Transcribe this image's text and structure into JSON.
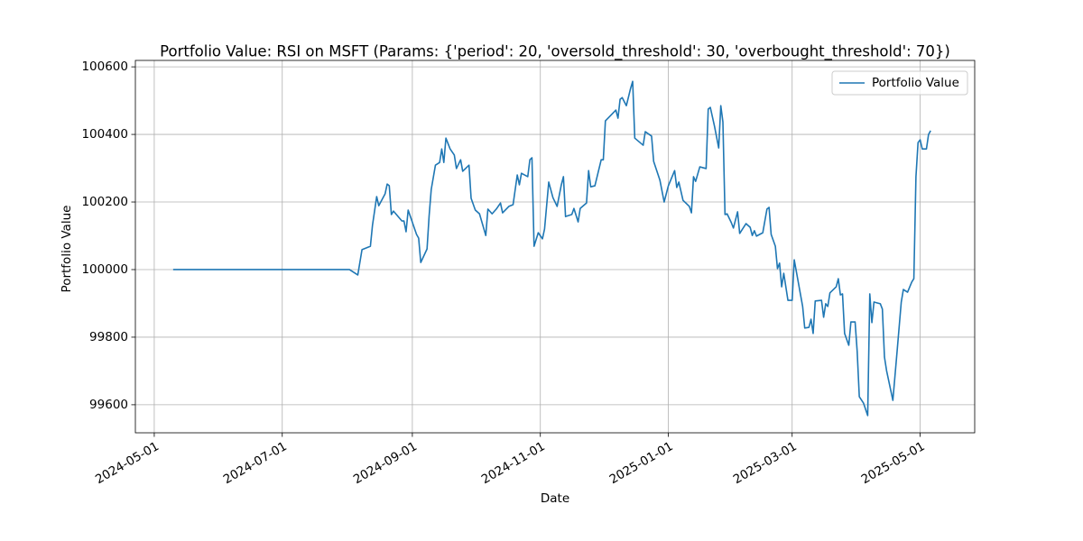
{
  "chart_data": {
    "type": "line",
    "title": "Portfolio Value: RSI on MSFT (Params: {'period': 20, 'oversold_threshold': 30, 'overbought_threshold': 70})",
    "x_label": "Date",
    "y_label": "Portfolio Value",
    "x": [
      "2024-05-10",
      "2024-08-02",
      "2024-08-06",
      "2024-08-08",
      "2024-08-12",
      "2024-08-13",
      "2024-08-15",
      "2024-08-16",
      "2024-08-19",
      "2024-08-20",
      "2024-08-21",
      "2024-08-22",
      "2024-08-23",
      "2024-08-27",
      "2024-08-28",
      "2024-08-29",
      "2024-08-30",
      "2024-09-03",
      "2024-09-04",
      "2024-09-05",
      "2024-09-08",
      "2024-09-09",
      "2024-09-10",
      "2024-09-12",
      "2024-09-14",
      "2024-09-15",
      "2024-09-16",
      "2024-09-17",
      "2024-09-19",
      "2024-09-21",
      "2024-09-22",
      "2024-09-24",
      "2024-09-25",
      "2024-09-28",
      "2024-09-29",
      "2024-10-01",
      "2024-10-03",
      "2024-10-06",
      "2024-10-07",
      "2024-10-09",
      "2024-10-11",
      "2024-10-13",
      "2024-10-14",
      "2024-10-17",
      "2024-10-19",
      "2024-10-21",
      "2024-10-22",
      "2024-10-23",
      "2024-10-26",
      "2024-10-27",
      "2024-10-28",
      "2024-10-29",
      "2024-10-31",
      "2024-11-02",
      "2024-11-03",
      "2024-11-05",
      "2024-11-07",
      "2024-11-09",
      "2024-11-11",
      "2024-11-12",
      "2024-11-13",
      "2024-11-16",
      "2024-11-17",
      "2024-11-19",
      "2024-11-20",
      "2024-11-23",
      "2024-11-24",
      "2024-11-25",
      "2024-11-27",
      "2024-11-30",
      "2024-12-01",
      "2024-12-02",
      "2024-12-07",
      "2024-12-08",
      "2024-12-09",
      "2024-12-10",
      "2024-12-12",
      "2024-12-14",
      "2024-12-15",
      "2024-12-16",
      "2024-12-20",
      "2024-12-21",
      "2024-12-24",
      "2024-12-25",
      "2024-12-28",
      "2024-12-29",
      "2024-12-30",
      "2025-01-01",
      "2025-01-04",
      "2025-01-05",
      "2025-01-06",
      "2025-01-08",
      "2025-01-11",
      "2025-01-12",
      "2025-01-13",
      "2025-01-14",
      "2025-01-16",
      "2025-01-19",
      "2025-01-20",
      "2025-01-21",
      "2025-01-23",
      "2025-01-25",
      "2025-01-26",
      "2025-01-27",
      "2025-01-28",
      "2025-01-29",
      "2025-01-31",
      "2025-02-01",
      "2025-02-03",
      "2025-02-04",
      "2025-02-07",
      "2025-02-09",
      "2025-02-10",
      "2025-02-11",
      "2025-02-12",
      "2025-02-15",
      "2025-02-17",
      "2025-02-18",
      "2025-02-19",
      "2025-02-21",
      "2025-02-22",
      "2025-02-23",
      "2025-02-24",
      "2025-02-25",
      "2025-02-27",
      "2025-03-01",
      "2025-03-02",
      "2025-03-04",
      "2025-03-06",
      "2025-03-07",
      "2025-03-09",
      "2025-03-10",
      "2025-03-11",
      "2025-03-12",
      "2025-03-15",
      "2025-03-16",
      "2025-03-17",
      "2025-03-18",
      "2025-03-19",
      "2025-03-22",
      "2025-03-23",
      "2025-03-24",
      "2025-03-25",
      "2025-03-26",
      "2025-03-28",
      "2025-03-29",
      "2025-03-31",
      "2025-04-01",
      "2025-04-02",
      "2025-04-04",
      "2025-04-06",
      "2025-04-07",
      "2025-04-08",
      "2025-04-09",
      "2025-04-12",
      "2025-04-13",
      "2025-04-14",
      "2025-04-15",
      "2025-04-18",
      "2025-04-20",
      "2025-04-22",
      "2025-04-23",
      "2025-04-25",
      "2025-04-27",
      "2025-04-28",
      "2025-04-29",
      "2025-04-30",
      "2025-05-01",
      "2025-05-02",
      "2025-05-04",
      "2025-05-05",
      "2025-05-06"
    ],
    "series": [
      {
        "name": "Portfolio Value",
        "color": "#1f77b4",
        "values": [
          100000,
          100000,
          99984,
          100059,
          100069,
          100131,
          100216,
          100189,
          100224,
          100253,
          100248,
          100163,
          100173,
          100144,
          100144,
          100112,
          100176,
          100104,
          100093,
          100021,
          100061,
          100160,
          100237,
          100309,
          100317,
          100357,
          100317,
          100389,
          100357,
          100339,
          100299,
          100325,
          100291,
          100309,
          100211,
          100176,
          100165,
          100101,
          100179,
          100165,
          100179,
          100197,
          100168,
          100187,
          100192,
          100280,
          100251,
          100285,
          100275,
          100325,
          100331,
          100069,
          100109,
          100091,
          100120,
          100259,
          100213,
          100187,
          100251,
          100275,
          100157,
          100163,
          100181,
          100141,
          100181,
          100197,
          100293,
          100245,
          100248,
          100325,
          100325,
          100440,
          100472,
          100448,
          100504,
          100509,
          100485,
          100536,
          100557,
          100389,
          100368,
          100408,
          100395,
          100320,
          100264,
          100232,
          100200,
          100248,
          100293,
          100243,
          100259,
          100205,
          100187,
          100168,
          100275,
          100261,
          100304,
          100299,
          100475,
          100480,
          100424,
          100360,
          100485,
          100437,
          100163,
          100165,
          100139,
          100123,
          100171,
          100107,
          100136,
          100125,
          100101,
          100115,
          100099,
          100109,
          100179,
          100184,
          100104,
          100069,
          100003,
          100019,
          99949,
          99989,
          99909,
          99909,
          100029,
          99960,
          99891,
          99827,
          99829,
          99853,
          99811,
          99907,
          99909,
          99859,
          99899,
          99891,
          99931,
          99949,
          99973,
          99925,
          99928,
          99811,
          99776,
          99845,
          99845,
          99757,
          99624,
          99605,
          99568,
          99928,
          99843,
          99904,
          99899,
          99883,
          99741,
          99701,
          99613,
          99757,
          99904,
          99941,
          99933,
          99963,
          99973,
          100275,
          100376,
          100384,
          100357,
          100357,
          100400,
          100411
        ]
      }
    ],
    "xlim": [
      "2024-04-22",
      "2025-05-27"
    ],
    "xticks": [
      "2024-05-01",
      "2024-07-01",
      "2024-09-01",
      "2024-11-01",
      "2025-01-01",
      "2025-03-01",
      "2025-05-01"
    ],
    "ylim": [
      99517,
      100619
    ],
    "yticks": [
      99600,
      99800,
      100000,
      100200,
      100400,
      100600
    ],
    "grid": true,
    "legend": "upper right"
  }
}
